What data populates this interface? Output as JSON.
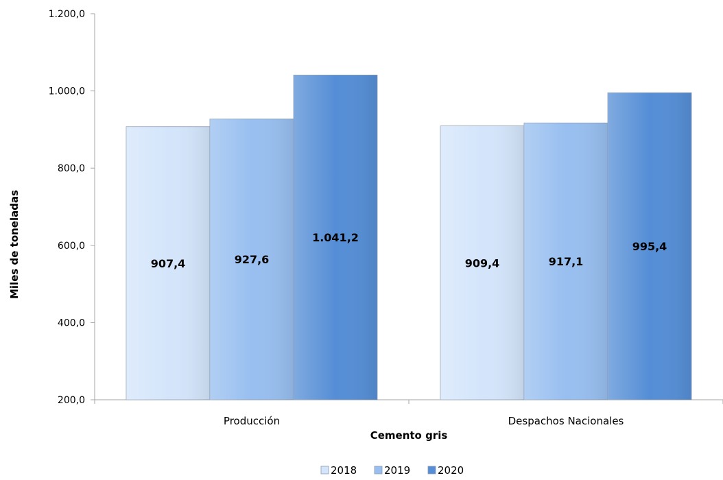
{
  "chart_data": {
    "type": "bar",
    "categories": [
      "Producción",
      "Despachos Nacionales"
    ],
    "series": [
      {
        "name": "2018",
        "values": [
          907.4,
          909.4
        ],
        "labels": [
          "907,4",
          "909,4"
        ],
        "color": "#d4e5fb"
      },
      {
        "name": "2019",
        "values": [
          927.6,
          917.1
        ],
        "labels": [
          "927,6",
          "917,1"
        ],
        "color": "#98bff0"
      },
      {
        "name": "2020",
        "values": [
          1041.2,
          995.4
        ],
        "labels": [
          "1.041,2",
          "995,4"
        ],
        "color": "#558ed6"
      }
    ],
    "xlabel": "Cemento gris",
    "ylabel": "Miles de toneladas",
    "ylim": [
      200,
      1200
    ],
    "yticks": [
      200,
      400,
      600,
      800,
      1000,
      1200
    ],
    "ytick_labels": [
      "200,0",
      "400,0",
      "600,0",
      "800,0",
      "1.000,0",
      "1.200,0"
    ],
    "grid": false,
    "legend_position": "bottom"
  }
}
